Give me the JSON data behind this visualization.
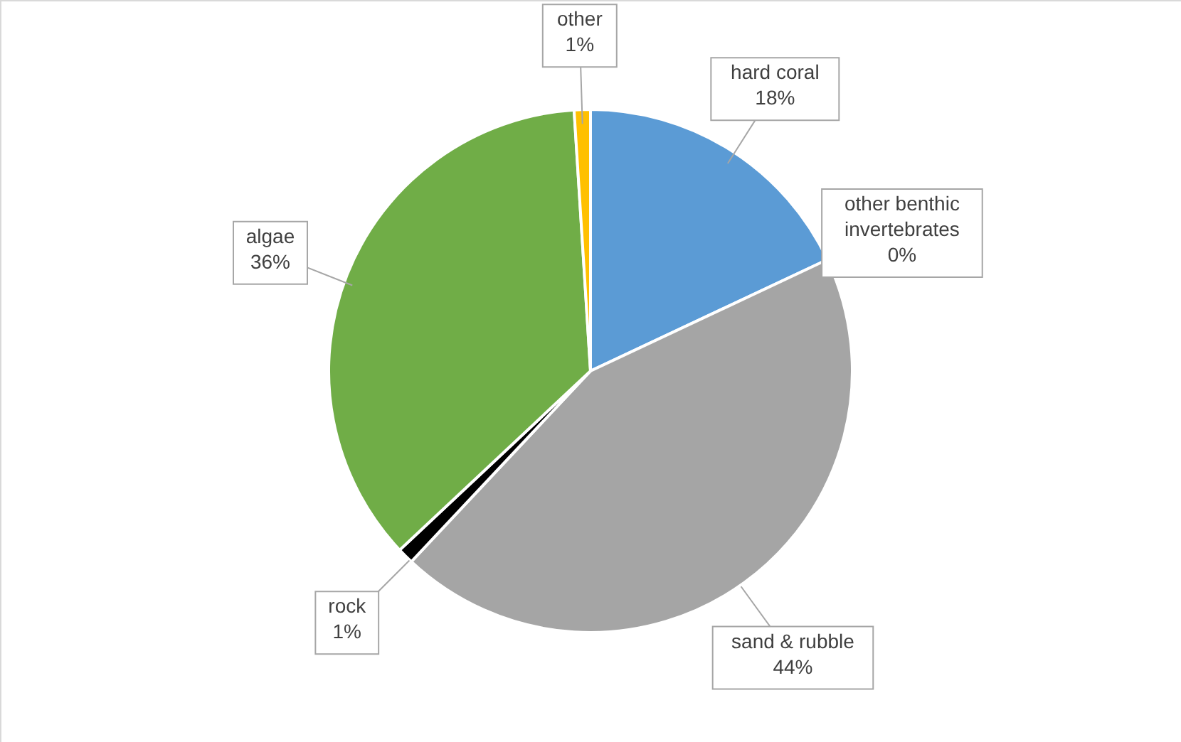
{
  "chart_data": {
    "type": "pie",
    "categories": [
      "hard coral",
      "other benthic invertebrates",
      "sand & rubble",
      "rock",
      "algae",
      "other"
    ],
    "values": [
      18,
      0,
      44,
      1,
      36,
      1
    ],
    "colors": [
      "#5b9bd5",
      "#ed7d31",
      "#a5a5a5",
      "#000000",
      "#70ad47",
      "#ffc000"
    ],
    "value_labels": [
      "18%",
      "0%",
      "44%",
      "1%",
      "36%",
      "1%"
    ]
  }
}
